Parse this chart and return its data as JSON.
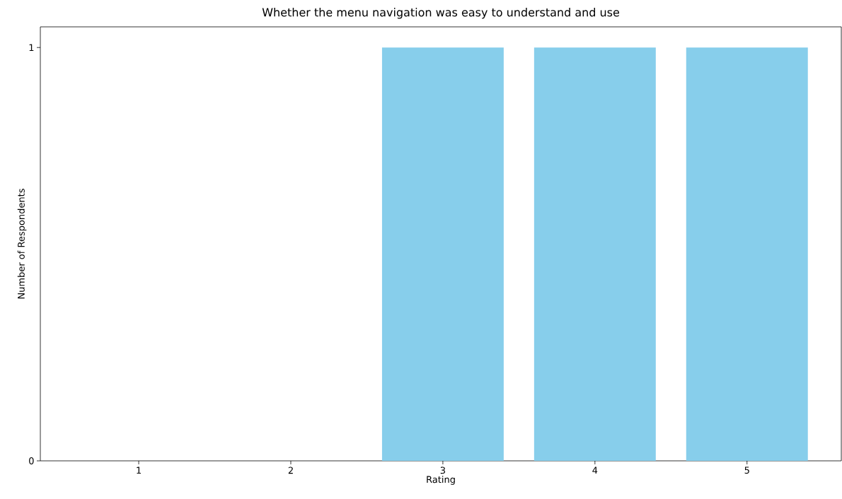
{
  "chart_data": {
    "type": "bar",
    "title": "Whether the menu navigation was easy to understand and use",
    "xlabel": "Rating",
    "ylabel": "Number of Respondents",
    "categories": [
      "1",
      "2",
      "3",
      "4",
      "5"
    ],
    "values": [
      0,
      0,
      1,
      1,
      1
    ],
    "color": "#87ceeb",
    "ylim": [
      0,
      1.05
    ],
    "yticks": [
      0,
      1
    ]
  }
}
